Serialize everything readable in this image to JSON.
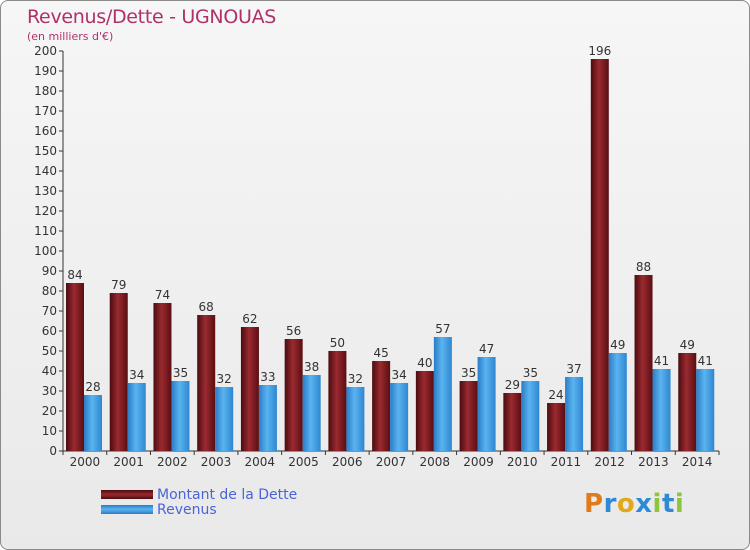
{
  "title": "Revenus/Dette - UGNOUAS",
  "subtitle": "(en milliers d'€)",
  "logo": {
    "text": "Proxiti",
    "letters": [
      {
        "ch": "P",
        "color": "#e07a1a"
      },
      {
        "ch": "r",
        "color": "#2f8ad6"
      },
      {
        "ch": "o",
        "color": "#e0a81a"
      },
      {
        "ch": "x",
        "color": "#2f8ad6"
      },
      {
        "ch": "i",
        "color": "#8cc63f"
      },
      {
        "ch": "t",
        "color": "#2f8ad6"
      },
      {
        "ch": "i",
        "color": "#8cc63f"
      }
    ]
  },
  "chart_data": {
    "type": "bar",
    "title": "Revenus/Dette - UGNOUAS",
    "subtitle": "(en milliers d'€)",
    "categories": [
      "2000",
      "2001",
      "2002",
      "2003",
      "2004",
      "2005",
      "2006",
      "2007",
      "2008",
      "2009",
      "2010",
      "2011",
      "2012",
      "2013",
      "2014"
    ],
    "series": [
      {
        "name": "Montant de la Dette",
        "color": "#7a1a1e",
        "values": [
          84,
          79,
          74,
          68,
          62,
          56,
          50,
          45,
          40,
          35,
          29,
          24,
          196,
          88,
          49
        ]
      },
      {
        "name": "Revenus",
        "color": "#3d9be0",
        "values": [
          28,
          34,
          35,
          32,
          33,
          38,
          32,
          34,
          57,
          47,
          35,
          37,
          49,
          41,
          41
        ]
      }
    ],
    "ylim": [
      0,
      200
    ],
    "ytick_step": 10,
    "grid": false,
    "legend_position": "bottom-left",
    "data_labels": true
  }
}
